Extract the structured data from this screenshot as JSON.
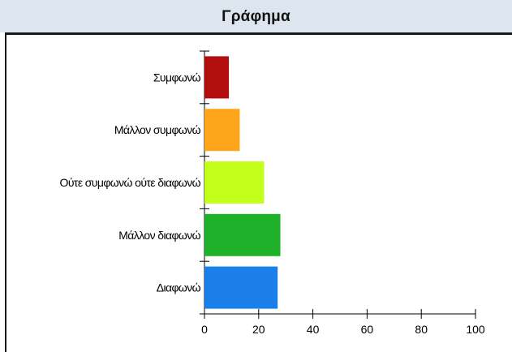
{
  "window": {
    "title": "Γράφημα"
  },
  "chart_data": {
    "type": "bar",
    "orientation": "horizontal",
    "categories": [
      "Συμφωνώ",
      "Μάλλον συμφωνώ",
      "Ούτε συμφωνώ ούτε διαφωνώ",
      "Μάλλον διαφωνώ",
      "Διαφωνώ"
    ],
    "values": [
      9,
      13,
      22,
      28,
      27
    ],
    "colors": [
      "#b30e0e",
      "#ffa51a",
      "#c2ff1a",
      "#1fb12a",
      "#1a7fe8"
    ],
    "xticks": [
      "0",
      "20",
      "40",
      "60",
      "80",
      "100"
    ],
    "xlim": [
      0,
      100
    ],
    "grid": false
  }
}
